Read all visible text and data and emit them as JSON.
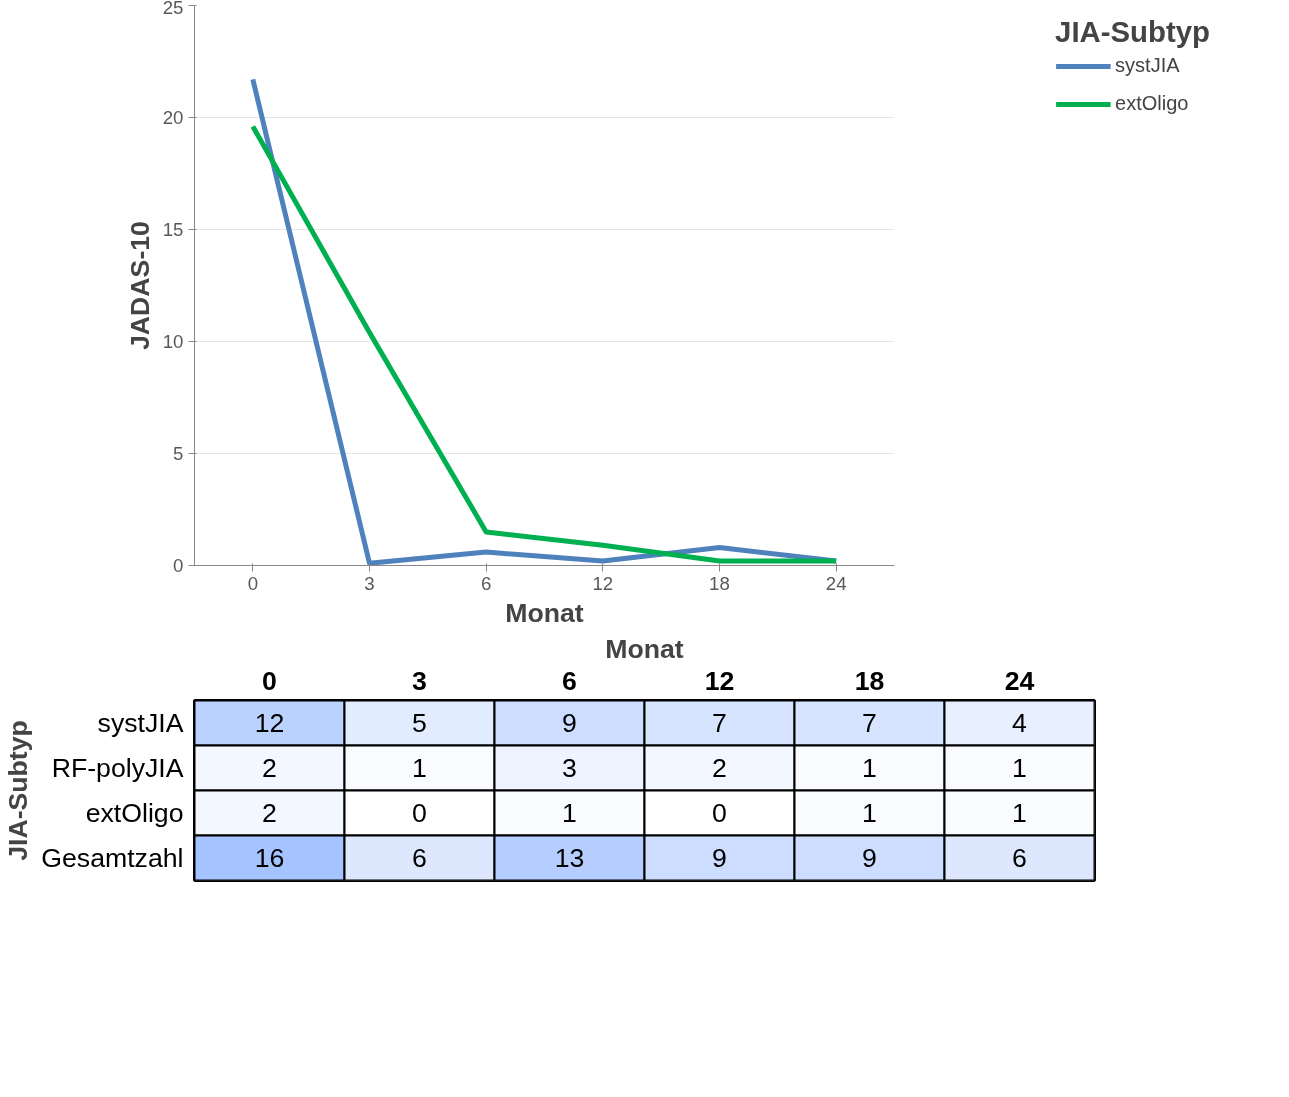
{
  "chart_data": [
    {
      "type": "line",
      "xlabel": "Monat",
      "ylabel": "JADAS-10",
      "legend_title": "JIA-Subtyp",
      "categories": [
        "0",
        "3",
        "6",
        "12",
        "18",
        "24"
      ],
      "series": [
        {
          "name": "systJIA",
          "color": "#4f81bd",
          "values": [
            21.7,
            0.1,
            0.6,
            0.2,
            0.8,
            0.2
          ]
        },
        {
          "name": "extOligo",
          "color": "#00b050",
          "values": [
            19.6,
            10.4,
            1.5,
            0.9,
            0.2,
            0.2
          ]
        }
      ],
      "ylim": [
        0,
        25
      ],
      "yticks": [
        0,
        5,
        10,
        15,
        20,
        25
      ],
      "grid": "y",
      "legend": "top right",
      "marker": "none",
      "line_style": "solid"
    },
    {
      "type": "heatmap",
      "xlabel": "Monat",
      "ylabel": "JIA-Subtyp",
      "categories": [
        "0",
        "3",
        "6",
        "12",
        "18",
        "24"
      ],
      "y_categories": [
        "systJIA",
        "RF-polyJIA",
        "extOligo",
        "Gesamtzahl"
      ],
      "cells": [
        [
          12,
          5,
          9,
          7,
          7,
          4
        ],
        [
          2,
          1,
          3,
          2,
          1,
          1
        ],
        [
          2,
          0,
          1,
          0,
          1,
          1
        ],
        [
          16,
          6,
          13,
          9,
          9,
          6
        ]
      ],
      "data_labels": true
    }
  ]
}
